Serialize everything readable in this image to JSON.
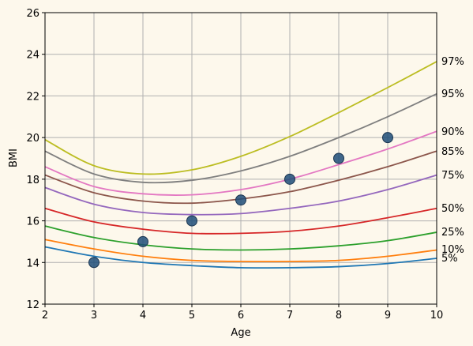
{
  "chart_data": {
    "type": "line",
    "title": "",
    "xlabel": "Age",
    "ylabel": "BMI",
    "xlim": [
      2,
      10
    ],
    "ylim": [
      12,
      26
    ],
    "xticks": [
      2,
      3,
      4,
      5,
      6,
      7,
      8,
      9,
      10
    ],
    "yticks": [
      12,
      14,
      16,
      18,
      20,
      22,
      24,
      26
    ],
    "grid": true,
    "series": [
      {
        "name": "5%",
        "color": "#1f77b4",
        "x": [
          2,
          3,
          4,
          5,
          6,
          7,
          8,
          9,
          10
        ],
        "y": [
          14.75,
          14.3,
          14.0,
          13.85,
          13.75,
          13.75,
          13.8,
          13.95,
          14.2
        ]
      },
      {
        "name": "10%",
        "color": "#ff7f0e",
        "x": [
          2,
          3,
          4,
          5,
          6,
          7,
          8,
          9,
          10
        ],
        "y": [
          15.1,
          14.65,
          14.3,
          14.1,
          14.05,
          14.05,
          14.1,
          14.3,
          14.6
        ]
      },
      {
        "name": "25%",
        "color": "#2ca02c",
        "x": [
          2,
          3,
          4,
          5,
          6,
          7,
          8,
          9,
          10
        ],
        "y": [
          15.75,
          15.2,
          14.85,
          14.65,
          14.6,
          14.65,
          14.8,
          15.05,
          15.45
        ]
      },
      {
        "name": "50%",
        "color": "#d62728",
        "x": [
          2,
          3,
          4,
          5,
          6,
          7,
          8,
          9,
          10
        ],
        "y": [
          16.6,
          15.95,
          15.6,
          15.4,
          15.4,
          15.5,
          15.75,
          16.15,
          16.6
        ]
      },
      {
        "name": "75%",
        "color": "#9467bd",
        "x": [
          2,
          3,
          4,
          5,
          6,
          7,
          8,
          9,
          10
        ],
        "y": [
          17.6,
          16.8,
          16.4,
          16.3,
          16.35,
          16.6,
          16.95,
          17.5,
          18.2
        ]
      },
      {
        "name": "85%",
        "color": "#8c564b",
        "x": [
          2,
          3,
          4,
          5,
          6,
          7,
          8,
          9,
          10
        ],
        "y": [
          18.2,
          17.35,
          16.95,
          16.85,
          17.05,
          17.4,
          17.95,
          18.6,
          19.35
        ]
      },
      {
        "name": "90%",
        "color": "#e377c2",
        "x": [
          2,
          3,
          4,
          5,
          6,
          7,
          8,
          9,
          10
        ],
        "y": [
          18.6,
          17.65,
          17.3,
          17.25,
          17.5,
          18.0,
          18.7,
          19.45,
          20.3
        ]
      },
      {
        "name": "95%",
        "color": "#7f7f7f",
        "x": [
          2,
          3,
          4,
          5,
          6,
          7,
          8,
          9,
          10
        ],
        "y": [
          19.35,
          18.25,
          17.85,
          17.95,
          18.4,
          19.1,
          20.0,
          21.0,
          22.1
        ]
      },
      {
        "name": "97%",
        "color": "#bcbd22",
        "x": [
          2,
          3,
          4,
          5,
          6,
          7,
          8,
          9,
          10
        ],
        "y": [
          19.9,
          18.65,
          18.25,
          18.45,
          19.1,
          20.05,
          21.2,
          22.4,
          23.65
        ]
      }
    ],
    "points": {
      "color": "#1f4e79",
      "x": [
        3,
        4,
        5,
        6,
        7,
        8,
        9
      ],
      "y": [
        14,
        15,
        16,
        17,
        18,
        19,
        20
      ]
    }
  }
}
